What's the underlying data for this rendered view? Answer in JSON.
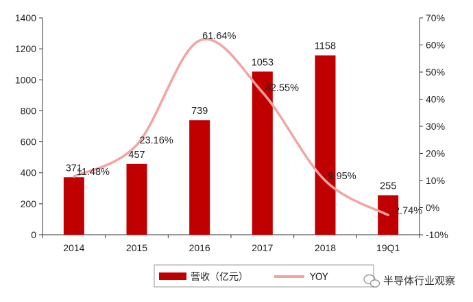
{
  "chart_data": {
    "type": "bar",
    "categories": [
      "2014",
      "2015",
      "2016",
      "2017",
      "2018",
      "19Q1"
    ],
    "series": [
      {
        "name": "营收（亿元）",
        "type": "bar",
        "axis": "left",
        "color": "#c00000",
        "values": [
          371,
          457,
          739,
          1053,
          1158,
          255
        ],
        "labels": [
          "371",
          "457",
          "739",
          "1053",
          "1158",
          "255"
        ]
      },
      {
        "name": "YOY",
        "type": "line",
        "smooth": true,
        "axis": "right",
        "color": "#f4a3a3",
        "values": [
          11.48,
          23.16,
          61.64,
          42.55,
          9.95,
          -2.74
        ],
        "labels": [
          "11.48%",
          "23.16%",
          "61.64%",
          "42.55%",
          "9.95%",
          "-2.74%"
        ]
      }
    ],
    "ylim": [
      0,
      1400
    ],
    "yticks": [
      "0",
      "200",
      "400",
      "600",
      "800",
      "1000",
      "1200",
      "1400"
    ],
    "y2lim": [
      -10,
      70
    ],
    "y2ticks": [
      "-10%",
      "0%",
      "10%",
      "20%",
      "30%",
      "40%",
      "50%",
      "60%",
      "70%"
    ],
    "legend_position": "bottom",
    "grid": false
  },
  "watermark": {
    "text": "半导体行业观察",
    "icon": "wechat-icon"
  }
}
